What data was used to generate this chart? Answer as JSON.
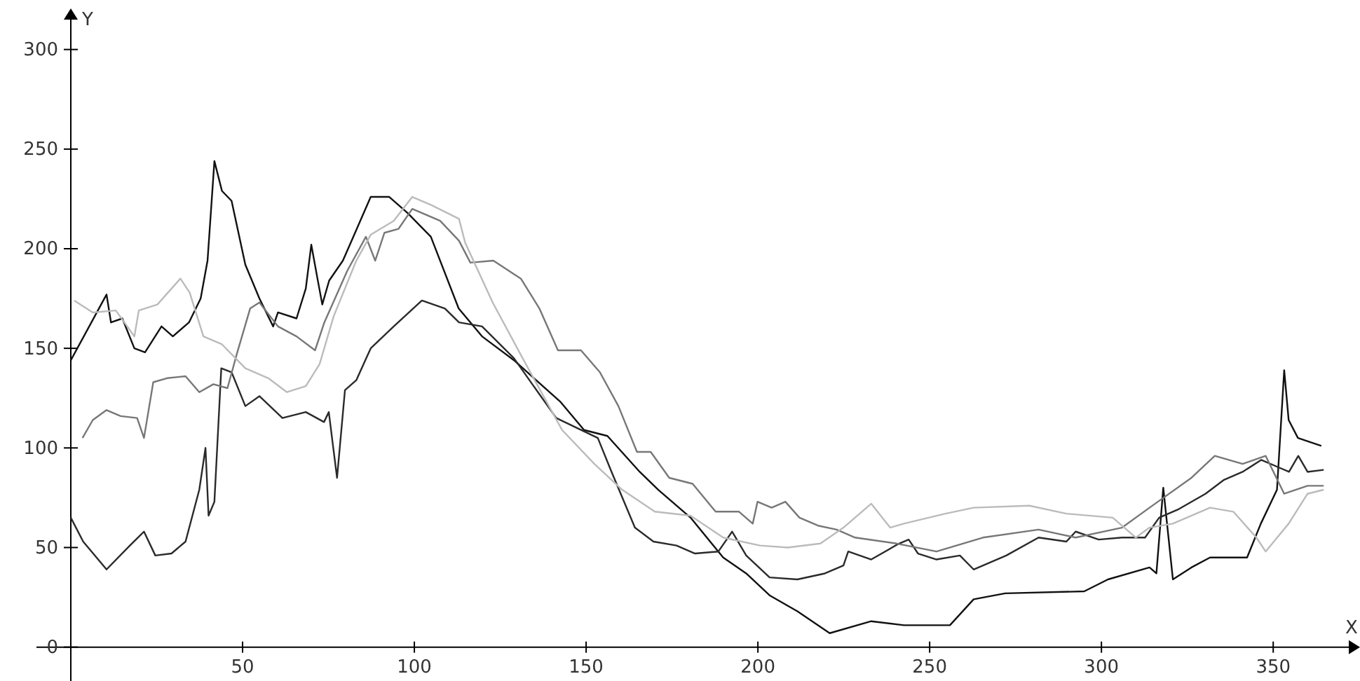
{
  "chart_data": {
    "type": "line",
    "xlabel": "X",
    "ylabel": "Y",
    "xlim": [
      -10,
      372
    ],
    "ylim": [
      -17,
      315
    ],
    "xticks": [
      50,
      100,
      150,
      200,
      250,
      300,
      350
    ],
    "yticks": [
      0,
      50,
      100,
      150,
      200,
      250,
      300
    ],
    "grid": false,
    "marker": "none",
    "line_style": "solid",
    "series": [
      {
        "color": "#111111",
        "x": [
          0,
          10.4,
          11.7,
          15,
          18.5,
          21.6,
          26.4,
          29.7,
          34.4,
          37.8,
          39.8,
          41.8,
          44,
          46.8,
          50.8,
          54.9,
          58.9,
          60.3,
          65.7,
          68.4,
          70,
          71.8,
          73.2,
          75.2,
          79.2,
          87.3,
          92.7,
          98,
          104.8,
          112.9,
          119.7,
          129,
          142.6,
          149.4,
          156.2,
          165.6,
          171,
          180.4,
          189.9,
          196.6,
          203.4,
          211.5,
          220.9,
          233,
          242.5,
          255.9,
          262.8,
          272,
          295,
          301.9,
          314,
          316,
          318,
          320.8,
          326.2,
          331.6,
          342.4,
          346.4,
          351.1,
          353.2,
          354.5,
          357.2,
          364
        ],
        "values": [
          144,
          177,
          163,
          165,
          150,
          148,
          161,
          156,
          163,
          175,
          194,
          244,
          229,
          224,
          192,
          175,
          161,
          168,
          165,
          180,
          202,
          185,
          172,
          184,
          194,
          226,
          226,
          218,
          206,
          170,
          156,
          144,
          123,
          109,
          106,
          88,
          79,
          65,
          45,
          37,
          26,
          18,
          7,
          13,
          11,
          11,
          24,
          27,
          28,
          34,
          40,
          37,
          80,
          34,
          40,
          45,
          45,
          62,
          79,
          139,
          114,
          105,
          101
        ]
      },
      {
        "color": "#2a2a2a",
        "x": [
          0,
          3.6,
          10.4,
          17.2,
          21.3,
          24.6,
          29.3,
          33.4,
          37.4,
          39.2,
          40.1,
          41.8,
          43.8,
          46.8,
          50.8,
          54.9,
          61.6,
          68.4,
          73.7,
          75.1,
          76.4,
          77.5,
          79.8,
          83.1,
          87.3,
          94,
          102.2,
          108.9,
          113,
          119.7,
          129,
          141.3,
          153.4,
          157.4,
          164.2,
          169.6,
          176.3,
          181.7,
          188.5,
          192.5,
          196.6,
          203.4,
          211.5,
          219.5,
          224.9,
          226.3,
          233,
          241.1,
          243.9,
          246.6,
          252,
          258.8,
          262.8,
          272.3,
          281.7,
          289.8,
          292.5,
          299.2,
          306,
          312.7,
          316.8,
          322.2,
          330.3,
          335.7,
          341.1,
          346.5,
          351.9,
          354.6,
          357.3,
          360,
          364.7
        ],
        "values": [
          65,
          53,
          39,
          51,
          58,
          46,
          47,
          53,
          79,
          100,
          66,
          73,
          140,
          138,
          121,
          126,
          115,
          118,
          113,
          118,
          100,
          85,
          129,
          134,
          150,
          161,
          174,
          170,
          163,
          161,
          145,
          115,
          105,
          88,
          60,
          53,
          51,
          47,
          48,
          58,
          46,
          35,
          34,
          37,
          41,
          48,
          44,
          52,
          54,
          47,
          44,
          46,
          39,
          46,
          55,
          53,
          58,
          54,
          55,
          55,
          65,
          69,
          77,
          84,
          88,
          94,
          90,
          88,
          96,
          88,
          89
        ]
      },
      {
        "color": "#777777",
        "x": [
          3.4,
          6.4,
          10.4,
          14.5,
          19.3,
          21.3,
          24,
          28,
          33.4,
          37.4,
          41.5,
          45.6,
          48.3,
          52.2,
          54.9,
          60.3,
          65.7,
          71.1,
          73.8,
          80.5,
          85.9,
          88.6,
          91.3,
          95.4,
          99.4,
          107.5,
          113,
          116.3,
          123,
          131,
          136.4,
          141.8,
          148.5,
          154,
          159.4,
          164.8,
          168.8,
          174.2,
          181,
          187.7,
          194.5,
          198.5,
          199.9,
          204,
          208,
          212.1,
          217.5,
          222.9,
          228.3,
          240.4,
          252,
          265.5,
          281.7,
          292.5,
          306,
          314,
          326.2,
          333,
          341.1,
          347.8,
          353.2,
          360,
          364.7
        ],
        "values": [
          105,
          114,
          119,
          116,
          115,
          105,
          133,
          135,
          136,
          128,
          132,
          130,
          147,
          170,
          173,
          161,
          156,
          149,
          163,
          189,
          206,
          194,
          208,
          210,
          220,
          214,
          204,
          193,
          194,
          185,
          170,
          149,
          149,
          138,
          121,
          98,
          98,
          85,
          82,
          68,
          68,
          62,
          73,
          70,
          73,
          65,
          61,
          59,
          55,
          52,
          48,
          55,
          59,
          55,
          60,
          70,
          85,
          96,
          92,
          96,
          77,
          81,
          81
        ]
      },
      {
        "color": "#bbbbbb",
        "x": [
          1,
          6.4,
          13.1,
          18.5,
          19.8,
          25.2,
          31.9,
          34.6,
          38.6,
          44,
          50.8,
          57.5,
          62.9,
          68.4,
          72.4,
          76.5,
          83.1,
          87.3,
          94,
          99.4,
          104.8,
          113,
          114.8,
          122.8,
          130.9,
          143,
          152.4,
          160.5,
          170,
          180.4,
          189.9,
          200.6,
          208.7,
          218.2,
          224.9,
          233,
          238.5,
          242.5,
          254.6,
          262.8,
          279,
          289.8,
          303.3,
          310,
          314,
          320.8,
          331.6,
          338.4,
          345.1,
          347.8,
          354.5,
          360,
          364.7
        ],
        "values": [
          174,
          168,
          169,
          156,
          169,
          172,
          185,
          178,
          156,
          152,
          140,
          135,
          128,
          131,
          142,
          166,
          194,
          207,
          214,
          226,
          222,
          215,
          203,
          173,
          147,
          109,
          92,
          79,
          68,
          66,
          55,
          51,
          50,
          52,
          60,
          72,
          60,
          62,
          67,
          70,
          71,
          67,
          65,
          55,
          60,
          62,
          70,
          68,
          55,
          48,
          62,
          77,
          79
        ]
      }
    ]
  }
}
